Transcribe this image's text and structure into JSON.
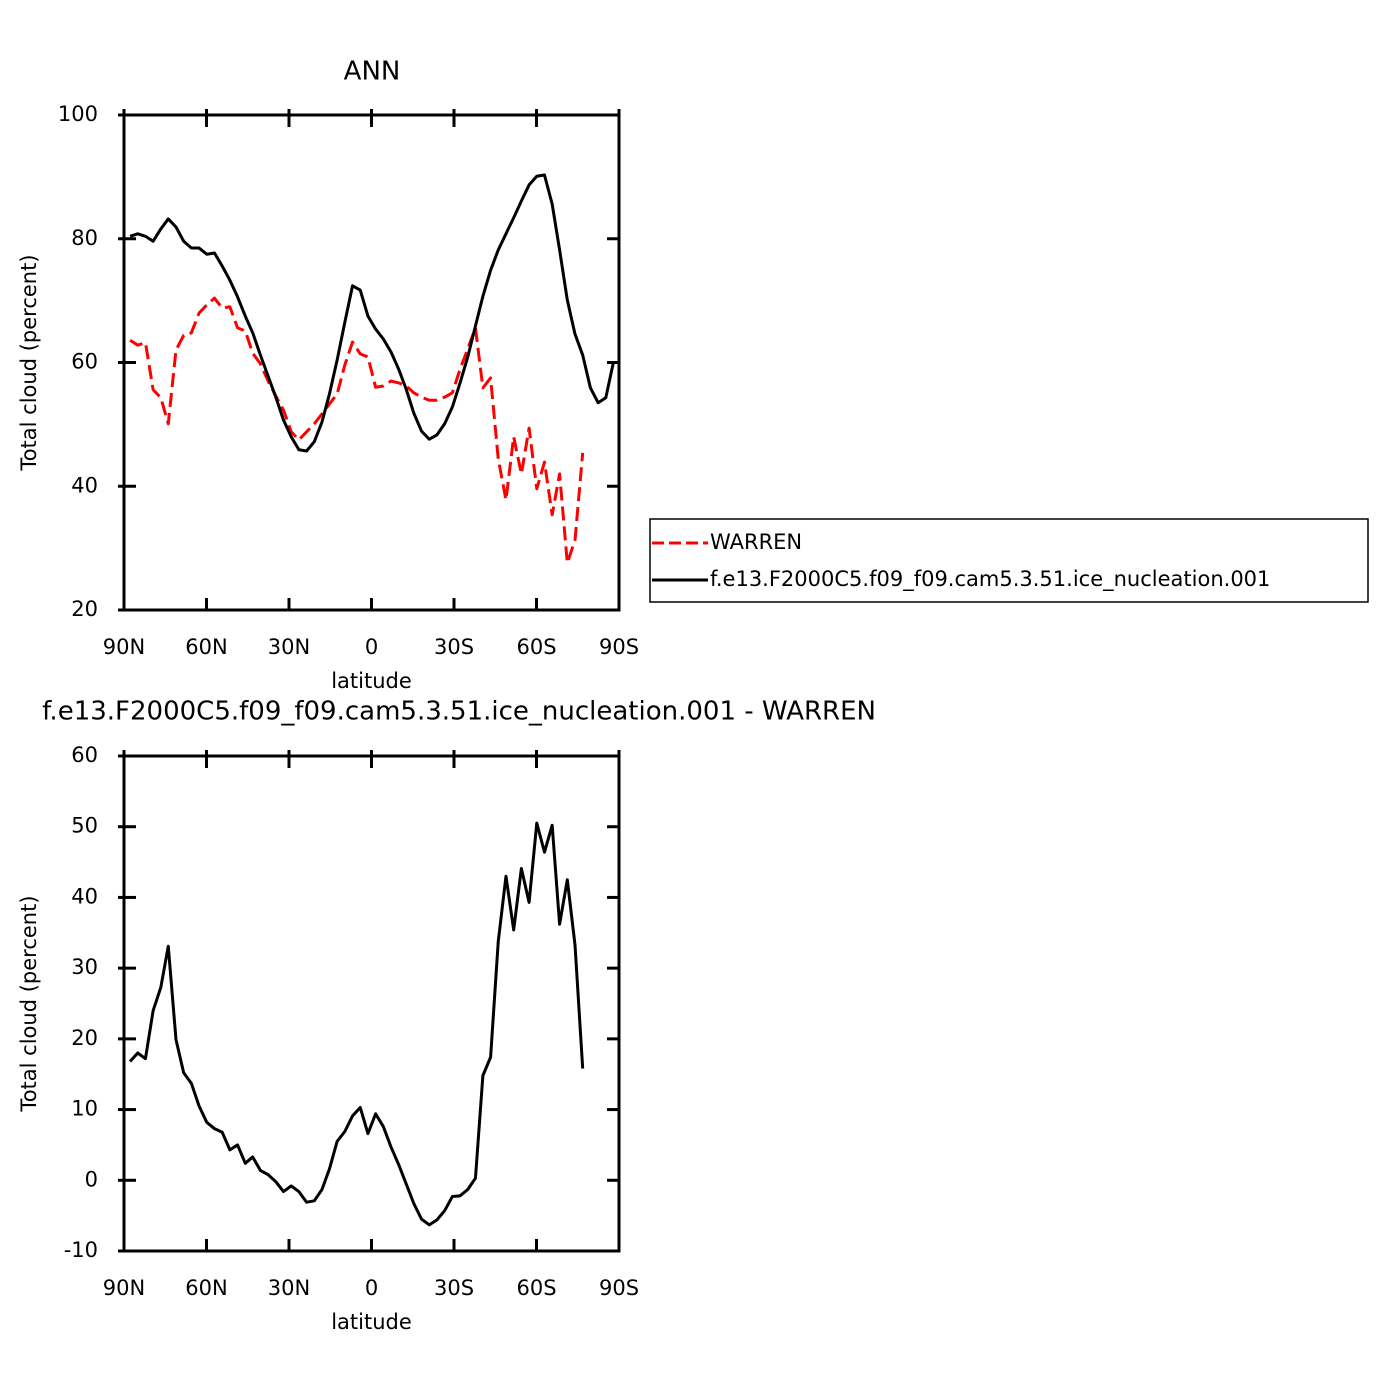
{
  "chart_data": [
    {
      "type": "line",
      "title": "ANN",
      "xlabel": "latitude",
      "ylabel": "Total cloud (percent)",
      "x": [
        87.8,
        85.0,
        82.2,
        79.4,
        76.6,
        73.9,
        71.1,
        68.3,
        65.5,
        62.7,
        59.9,
        57.1,
        54.3,
        51.5,
        48.7,
        45.9,
        43.2,
        40.4,
        37.6,
        34.8,
        32.0,
        29.2,
        26.4,
        23.6,
        20.8,
        18.0,
        15.3,
        12.5,
        9.7,
        6.9,
        4.1,
        1.3,
        -1.5,
        -4.3,
        -7.1,
        -9.9,
        -12.6,
        -15.4,
        -18.2,
        -21.0,
        -23.8,
        -26.6,
        -29.4,
        -32.2,
        -35.0,
        -37.8,
        -40.5,
        -43.3,
        -46.1,
        -48.9,
        -51.7,
        -54.5,
        -57.3,
        -60.1,
        -62.9,
        -65.7,
        -68.4,
        -71.2,
        -74.0,
        -76.8,
        -79.6,
        -82.4,
        -85.2,
        -88.0
      ],
      "xlim": [
        90,
        -90
      ],
      "xticks": [
        {
          "value": 90,
          "label": "90N"
        },
        {
          "value": 60,
          "label": "60N"
        },
        {
          "value": 30,
          "label": "30N"
        },
        0,
        {
          "value": -30,
          "label": "30S"
        },
        {
          "value": -60,
          "label": "60S"
        },
        {
          "value": -90,
          "label": "90S"
        }
      ],
      "ylim": [
        20,
        100
      ],
      "yticks": [
        20,
        40,
        60,
        80,
        100
      ],
      "legend": "right",
      "series": [
        {
          "name": "WARREN",
          "color": "#ff0000",
          "dash": "dashed",
          "values": [
            63.6,
            62.8,
            63.2,
            55.6,
            54.3,
            50.1,
            62.0,
            64.4,
            64.8,
            68.0,
            69.3,
            70.4,
            68.8,
            69.0,
            65.6,
            65.1,
            61.5,
            59.8,
            57.0,
            54.6,
            52.3,
            48.8,
            47.5,
            48.8,
            50.1,
            51.7,
            53.3,
            54.9,
            59.6,
            63.3,
            61.4,
            60.9,
            56.0,
            56.2,
            57.0,
            56.7,
            56.2,
            55.1,
            54.4,
            53.9,
            53.9,
            54.4,
            55.1,
            58.9,
            62.2,
            65.6,
            55.9,
            57.5,
            44.4,
            37.8,
            48.0,
            42.0,
            49.4,
            39.6,
            43.9,
            35.4,
            42.0,
            27.6,
            31.3,
            45.4,
            null,
            null,
            null,
            null
          ]
        },
        {
          "name": "f.e13.F2000C5.f09_f09.cam5.3.51.ice_nucleation.001",
          "color": "#000000",
          "dash": "solid",
          "values": [
            80.4,
            80.8,
            80.4,
            79.6,
            81.6,
            83.2,
            81.9,
            79.6,
            78.5,
            78.5,
            77.5,
            77.7,
            75.6,
            73.3,
            70.6,
            67.5,
            64.8,
            61.2,
            57.8,
            54.4,
            50.7,
            48.0,
            45.9,
            45.7,
            47.2,
            50.4,
            54.9,
            60.4,
            66.5,
            72.4,
            71.7,
            67.5,
            65.4,
            63.8,
            61.7,
            58.9,
            55.7,
            51.8,
            48.9,
            47.6,
            48.3,
            50.1,
            52.8,
            56.7,
            60.9,
            65.9,
            70.7,
            74.9,
            78.2,
            80.8,
            83.4,
            86.1,
            88.7,
            90.1,
            90.3,
            85.6,
            78.2,
            70.1,
            64.6,
            61.2,
            55.9,
            53.5,
            54.3,
            60.1
          ]
        }
      ]
    },
    {
      "type": "line",
      "title": "f.e13.F2000C5.f09_f09.cam5.3.51.ice_nucleation.001 - WARREN",
      "xlabel": "latitude",
      "ylabel": "Total cloud (percent)",
      "x": [
        87.8,
        85.0,
        82.2,
        79.4,
        76.6,
        73.9,
        71.1,
        68.3,
        65.5,
        62.7,
        59.9,
        57.1,
        54.3,
        51.5,
        48.7,
        45.9,
        43.2,
        40.4,
        37.6,
        34.8,
        32.0,
        29.2,
        26.4,
        23.6,
        20.8,
        18.0,
        15.3,
        12.5,
        9.7,
        6.9,
        4.1,
        1.3,
        -1.5,
        -4.3,
        -7.1,
        -9.9,
        -12.6,
        -15.4,
        -18.2,
        -21.0,
        -23.8,
        -26.6,
        -29.4,
        -32.2,
        -35.0,
        -37.8,
        -40.5,
        -43.3,
        -46.1,
        -48.9,
        -51.7,
        -54.5,
        -57.3,
        -60.1,
        -62.9,
        -65.7,
        -68.4,
        -71.2,
        -74.0,
        -76.8
      ],
      "xlim": [
        90,
        -90
      ],
      "xticks": [
        {
          "value": 90,
          "label": "90N"
        },
        {
          "value": 60,
          "label": "60N"
        },
        {
          "value": 30,
          "label": "30N"
        },
        0,
        {
          "value": -30,
          "label": "30S"
        },
        {
          "value": -60,
          "label": "60S"
        },
        {
          "value": -90,
          "label": "90S"
        }
      ],
      "ylim": [
        -10,
        60
      ],
      "yticks": [
        -10,
        0,
        10,
        20,
        30,
        40,
        50,
        60
      ],
      "series": [
        {
          "color": "#000000",
          "dash": "solid",
          "values": [
            16.8,
            18.0,
            17.2,
            24.0,
            27.3,
            33.1,
            19.9,
            15.2,
            13.7,
            10.5,
            8.2,
            7.3,
            6.8,
            4.3,
            5.0,
            2.4,
            3.3,
            1.4,
            0.8,
            -0.2,
            -1.6,
            -0.8,
            -1.6,
            -3.1,
            -2.9,
            -1.3,
            1.6,
            5.5,
            6.9,
            9.1,
            10.3,
            6.6,
            9.4,
            7.6,
            4.7,
            2.2,
            -0.5,
            -3.3,
            -5.5,
            -6.3,
            -5.6,
            -4.3,
            -2.3,
            -2.2,
            -1.3,
            0.3,
            14.8,
            17.4,
            33.8,
            43.0,
            35.4,
            44.1,
            39.3,
            50.5,
            46.4,
            50.2,
            36.2,
            42.5,
            33.3,
            15.8
          ]
        }
      ]
    }
  ]
}
